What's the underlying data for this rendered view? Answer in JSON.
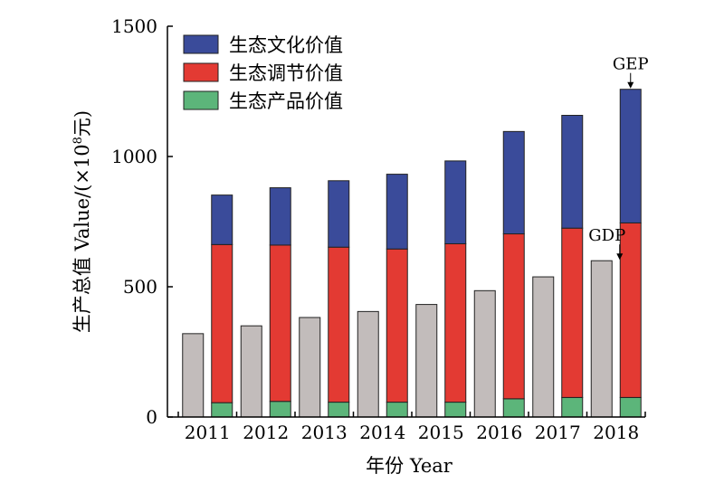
{
  "chart_data": {
    "type": "bar",
    "categories": [
      "2011",
      "2012",
      "2013",
      "2014",
      "2015",
      "2016",
      "2017",
      "2018"
    ],
    "series": [
      {
        "name": "生态产品价值",
        "stack": "GEP",
        "values": [
          55,
          60,
          57,
          57,
          57,
          70,
          75,
          75
        ]
      },
      {
        "name": "生态调节价值",
        "stack": "GEP",
        "values": [
          607,
          600,
          595,
          588,
          608,
          633,
          650,
          670
        ]
      },
      {
        "name": "生态文化价值",
        "stack": "GEP",
        "values": [
          190,
          220,
          255,
          287,
          318,
          393,
          433,
          513
        ]
      },
      {
        "name": "GDP",
        "values": [
          320,
          350,
          382,
          405,
          432,
          485,
          538,
          600
        ]
      }
    ],
    "colors": {
      "生态文化价值": "#3a4b9a",
      "生态调节价值": "#e33a33",
      "生态产品价值": "#5cb57a",
      "GDP": "#c2bcbb"
    },
    "annotations": [
      {
        "text": "GEP",
        "x": "2018",
        "y": 1258
      },
      {
        "text": "GDP",
        "x": "2018",
        "y": 600
      }
    ],
    "xlabel": "年份 Year",
    "ylabel": "生产总值 Value/(×10",
    "ylabel_superscript": "8",
    "ylabel_suffix": "元)",
    "yticks": [
      0,
      500,
      1000,
      1500
    ],
    "ylim": [
      0,
      1500
    ],
    "legend_position": "top-left",
    "legend_order": [
      "生态文化价值",
      "生态调节价值",
      "生态产品价值"
    ],
    "grid": false
  }
}
